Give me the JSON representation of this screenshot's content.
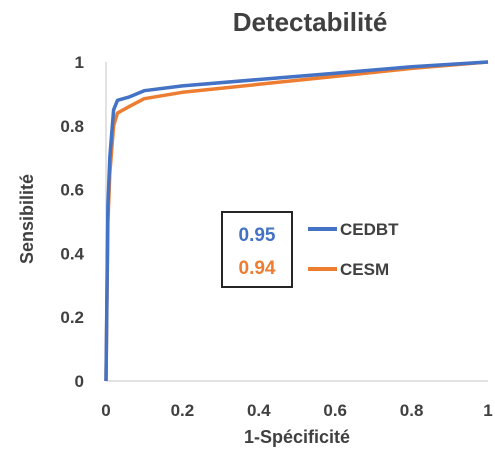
{
  "chart_data": {
    "type": "line",
    "title": "Detectabilité",
    "xlabel": "1-Spécificité",
    "ylabel": "Sensibilité",
    "xlim": [
      0,
      1
    ],
    "ylim": [
      0,
      1
    ],
    "x_ticks": [
      "0",
      "0.2",
      "0.4",
      "0.6",
      "0.8",
      "1"
    ],
    "y_ticks": [
      "0",
      "0.2",
      "0.4",
      "0.6",
      "0.8",
      "1"
    ],
    "grid": false,
    "legend_position": "right",
    "series": [
      {
        "name": "CEDBT",
        "color": "#4472C4",
        "x": [
          0,
          0.005,
          0.01,
          0.02,
          0.03,
          0.06,
          0.1,
          0.2,
          0.4,
          0.6,
          0.8,
          1
        ],
        "y": [
          0,
          0.55,
          0.7,
          0.85,
          0.88,
          0.89,
          0.91,
          0.925,
          0.945,
          0.965,
          0.985,
          1
        ]
      },
      {
        "name": "CESM",
        "color": "#ED7D31",
        "x": [
          0,
          0.005,
          0.01,
          0.02,
          0.03,
          0.06,
          0.1,
          0.2,
          0.4,
          0.6,
          0.8,
          1
        ],
        "y": [
          0,
          0.5,
          0.65,
          0.8,
          0.84,
          0.86,
          0.885,
          0.905,
          0.93,
          0.955,
          0.98,
          1
        ]
      }
    ],
    "annotations": [
      {
        "text": "0.95",
        "series": "CEDBT",
        "color": "#4472C4"
      },
      {
        "text": "0.94",
        "series": "CESM",
        "color": "#ED7D31"
      }
    ]
  }
}
